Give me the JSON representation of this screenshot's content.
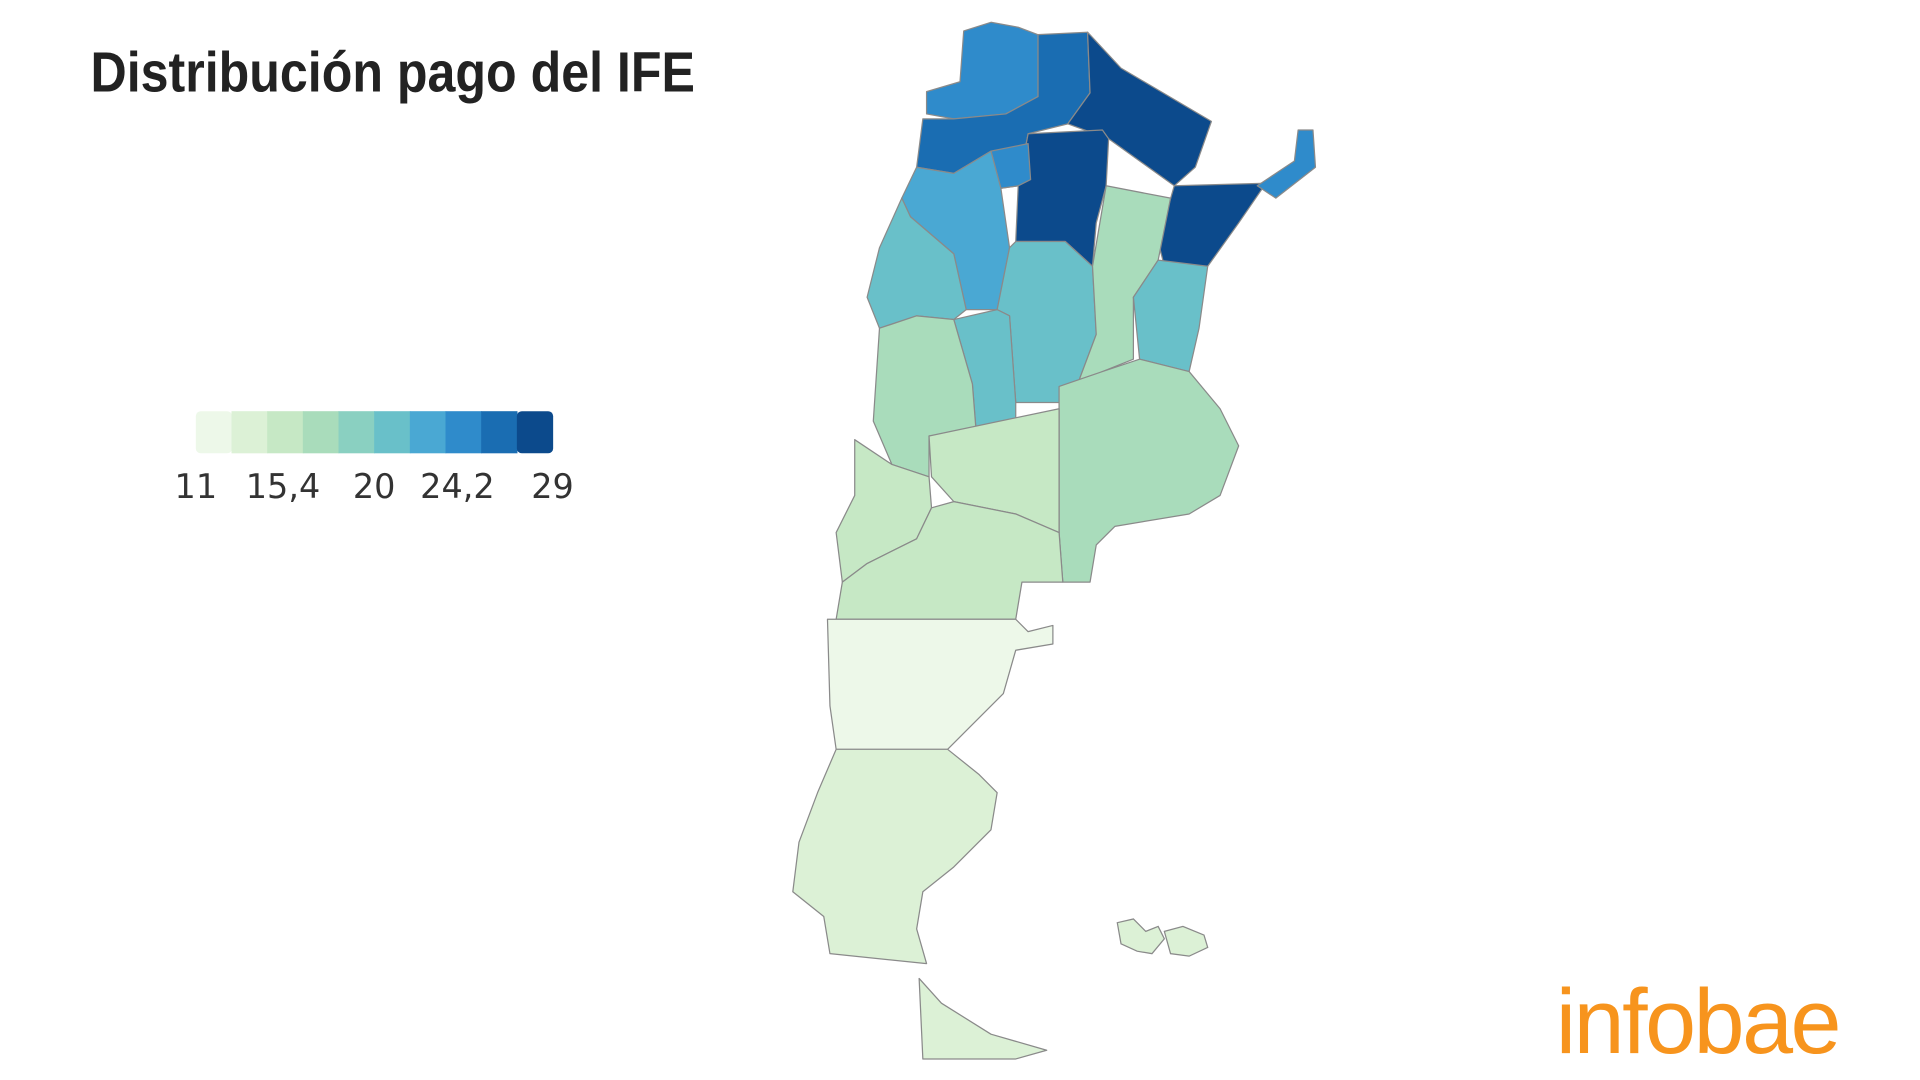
{
  "title": "Distribución pago del IFE",
  "legend": {
    "ticks": [
      11,
      {
        "value": 15.4,
        "label": "15,4"
      },
      20,
      {
        "value": 24.2,
        "label": "24,2"
      },
      29
    ],
    "colors": [
      "#edf8e9",
      "#dcf1d6",
      "#c6e8c5",
      "#a9dcbb",
      "#8ad0c1",
      "#69c0c9",
      "#4aa8d3",
      "#2f8bcb",
      "#1a6db2",
      "#0c4a8c"
    ]
  },
  "regions": {
    "values": [
      25,
      27,
      29,
      29,
      29,
      24,
      25,
      22,
      21,
      21,
      18,
      20,
      20,
      17,
      17,
      15,
      15,
      15,
      11,
      13.5,
      13.5
    ]
  },
  "logo": "infobae"
}
